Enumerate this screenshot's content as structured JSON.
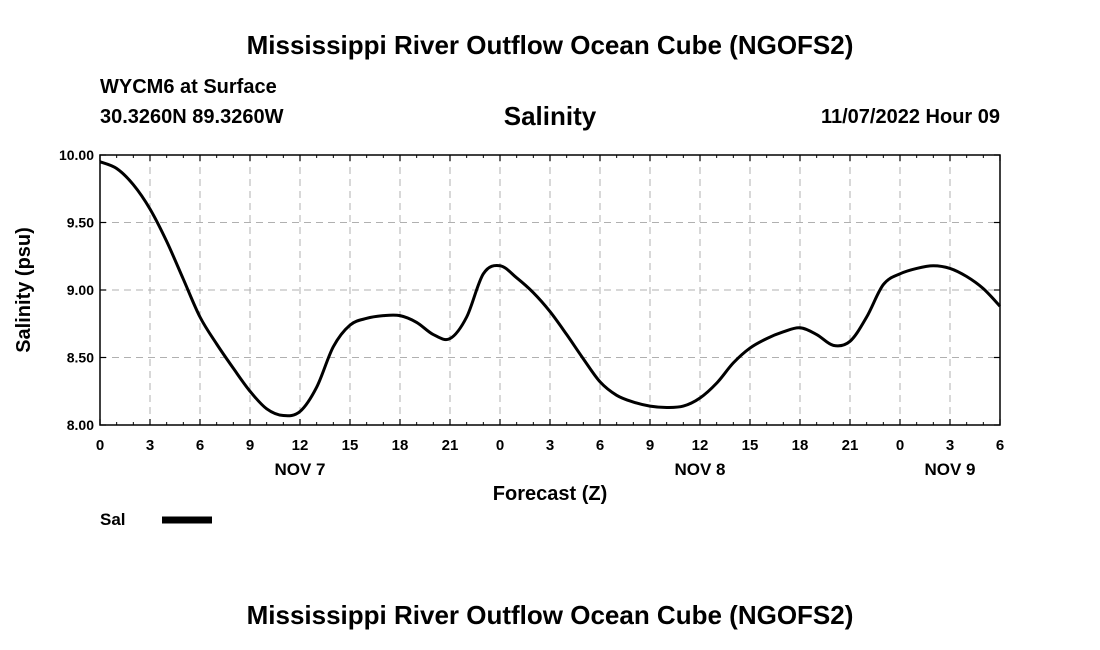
{
  "header": {
    "title": "Mississippi River Outflow Ocean Cube (NGOFS2)",
    "station": "WYCM6 at Surface",
    "coords": "30.3260N  89.3260W",
    "datetime": "11/07/2022 Hour 09"
  },
  "footer": {
    "title": "Mississippi River Outflow Ocean Cube (NGOFS2)"
  },
  "chart_data": {
    "type": "line",
    "title": "Salinity",
    "ylabel": "Salinity (psu)",
    "xlabel": "Forecast (Z)",
    "ylim": [
      8.0,
      10.0
    ],
    "xlim": [
      0,
      54
    ],
    "yticks": [
      8.0,
      8.5,
      9.0,
      9.5,
      10.0
    ],
    "ytick_labels": [
      "8.00",
      "8.50",
      "9.00",
      "9.50",
      "10.00"
    ],
    "xticks": [
      0,
      3,
      6,
      9,
      12,
      15,
      18,
      21,
      24,
      27,
      30,
      33,
      36,
      39,
      42,
      45,
      48,
      51,
      54
    ],
    "xtick_labels": [
      "0",
      "3",
      "6",
      "9",
      "12",
      "15",
      "18",
      "21",
      "0",
      "3",
      "6",
      "9",
      "12",
      "15",
      "18",
      "21",
      "0",
      "3",
      "6"
    ],
    "day_labels": [
      {
        "x": 12,
        "label": "NOV 7"
      },
      {
        "x": 36,
        "label": "NOV 8"
      },
      {
        "x": 51,
        "label": "NOV 9"
      }
    ],
    "grid": true,
    "legend": [
      {
        "name": "Sal",
        "color": "#000000"
      }
    ],
    "series": [
      {
        "name": "Sal",
        "color": "#000000",
        "x": [
          0,
          1,
          2,
          3,
          4,
          5,
          6,
          7,
          8,
          9,
          10,
          11,
          12,
          13,
          14,
          15,
          16,
          17,
          18,
          19,
          20,
          21,
          22,
          23,
          24,
          25,
          26,
          27,
          28,
          29,
          30,
          31,
          32,
          33,
          34,
          35,
          36,
          37,
          38,
          39,
          40,
          41,
          42,
          43,
          44,
          45,
          46,
          47,
          48,
          49,
          50,
          51,
          52,
          53,
          54
        ],
        "y": [
          9.95,
          9.9,
          9.78,
          9.6,
          9.36,
          9.08,
          8.8,
          8.6,
          8.42,
          8.25,
          8.12,
          8.07,
          8.1,
          8.28,
          8.58,
          8.74,
          8.79,
          8.81,
          8.81,
          8.76,
          8.67,
          8.64,
          8.8,
          9.12,
          9.18,
          9.09,
          8.98,
          8.84,
          8.67,
          8.49,
          8.32,
          8.22,
          8.17,
          8.14,
          8.13,
          8.14,
          8.2,
          8.31,
          8.46,
          8.57,
          8.64,
          8.69,
          8.72,
          8.67,
          8.59,
          8.62,
          8.8,
          9.04,
          9.12,
          9.16,
          9.18,
          9.16,
          9.1,
          9.01,
          8.88
        ]
      }
    ]
  }
}
